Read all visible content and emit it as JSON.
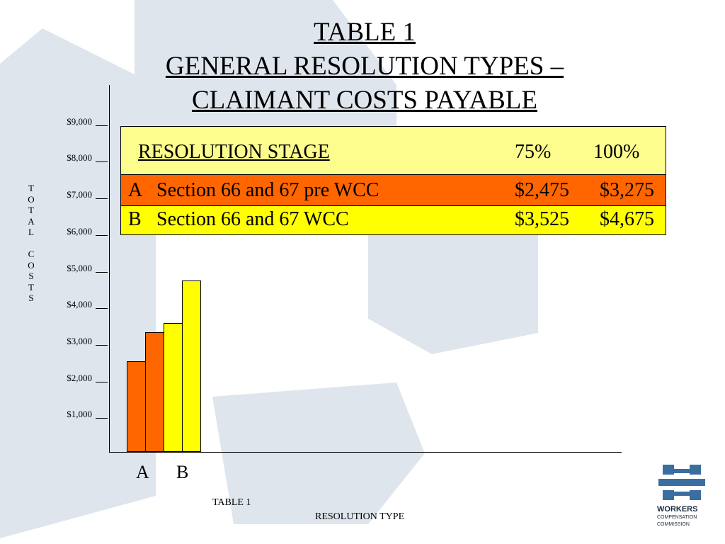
{
  "title": {
    "line1": "TABLE 1",
    "line2": "GENERAL RESOLUTION TYPES –",
    "line3": "CLAIMANT COSTS PAYABLE"
  },
  "table": {
    "header": {
      "label": "RESOLUTION STAGE",
      "col1": "75%",
      "col2": "100%"
    },
    "rows": [
      {
        "letter": "A",
        "description": "Section 66 and 67 pre WCC",
        "v75": "$2,475",
        "v100": "$3,275",
        "color": "#ff6600"
      },
      {
        "letter": "B",
        "description": "Section 66 and 67 WCC",
        "v75": "$3,525",
        "v100": "$4,675",
        "color": "#ffff00"
      }
    ],
    "header_color": "#fdfd8e"
  },
  "chart_data": {
    "type": "bar",
    "categories": [
      "A",
      "B"
    ],
    "series": [
      {
        "values": [
          2475,
          3525
        ]
      },
      {
        "values": [
          3275,
          4675
        ]
      }
    ],
    "bar_colors": {
      "A": "#ff6600",
      "B": "#ffff00"
    },
    "ylabel": "TOTAL COSTS",
    "xlabel": "RESOLUTION TYPE",
    "caption": "TABLE 1",
    "ylim": [
      0,
      10000
    ],
    "yticks": [
      "$1,000",
      "$2,000",
      "$3,000",
      "$4,000",
      "$5,000",
      "$6,000",
      "$7,000",
      "$8,000",
      "$9,000"
    ],
    "grid": false
  },
  "logo": {
    "line1": "WORKERS",
    "line2": "COMPENSATION",
    "line3": "COMMISSION"
  },
  "colors": {
    "watermark": "#dfe5ec",
    "logo_blue": "#3b6ea0"
  }
}
